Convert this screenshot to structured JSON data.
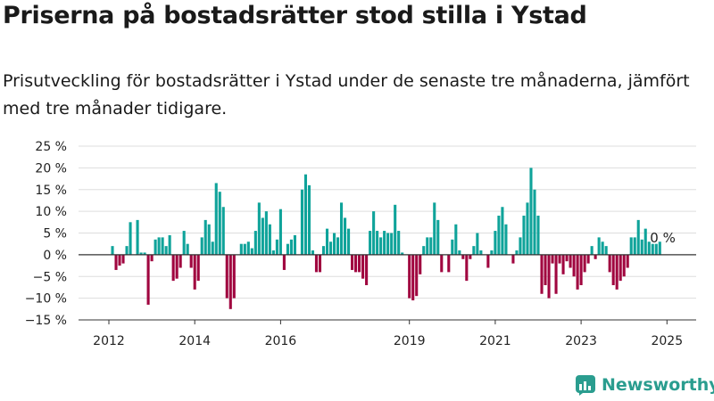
{
  "title": "Priserna på bostadsrätter stod stilla i Ystad",
  "subtitle": "Prisutveckling för bostadsrätter i Ystad under de senaste tre månaderna, jämfört med tre månader tidigare.",
  "brand": "Newsworthy",
  "end_label": "0 %",
  "colors": {
    "positive": "#0fa39a",
    "negative": "#a0053f",
    "grid": "#dddddd",
    "axis": "#333333",
    "brand": "#2a9d8f"
  },
  "chart_data": {
    "type": "bar",
    "title": "",
    "xlabel": "",
    "ylabel": "",
    "ylim": [
      -15,
      25
    ],
    "y_ticks": [
      25,
      20,
      15,
      10,
      5,
      0,
      -5,
      -10,
      -15
    ],
    "y_tick_labels": [
      "25 %",
      "20 %",
      "15 %",
      "10 %",
      "5 %",
      "0 %",
      "−5 %",
      "−10 %",
      "−15 %"
    ],
    "x_ticks": [
      2012,
      2014,
      2016,
      2019,
      2021,
      2023,
      2025
    ],
    "x_tick_labels": [
      "2012",
      "2014",
      "2016",
      "2019",
      "2021",
      "2023",
      "2025"
    ],
    "grid": true,
    "series": [
      {
        "values": [
          2,
          -3.5,
          -2.5,
          -2,
          2,
          7.5,
          0,
          8,
          0.5,
          0.5,
          -11.5,
          -1.5,
          3.5,
          4,
          4,
          2,
          4.5,
          -6,
          -5.5,
          -3,
          5.5,
          2.5,
          -3,
          -8,
          -6,
          4,
          8,
          7,
          3,
          16.5,
          14.5,
          11,
          -10,
          -12.5,
          -10,
          0,
          2.5,
          2.5,
          3,
          1.5,
          5.5,
          12,
          8.5,
          10,
          7,
          1,
          3.5,
          10.5,
          -3.5,
          2.5,
          3.5,
          4.5,
          0,
          15,
          18.5,
          16,
          1,
          -4,
          -4,
          2,
          6,
          3,
          5,
          4,
          12,
          8.5,
          6,
          -3.5,
          -4,
          -4,
          -5.5,
          -7,
          5.5,
          10,
          5.5,
          4,
          5.5,
          5,
          5,
          11.5,
          5.5,
          0.5,
          0,
          -10,
          -10.5,
          -9.5,
          -4.5,
          2,
          4,
          4,
          12,
          8,
          -4,
          0,
          -4,
          3.5,
          7,
          1,
          -1,
          -6,
          -1,
          2,
          5,
          1,
          0,
          -3,
          1,
          5.5,
          9,
          11,
          7,
          0,
          -2,
          1,
          4,
          9,
          12,
          20,
          15,
          9,
          -9,
          -7,
          -10,
          -2,
          -9,
          -2,
          -4.5,
          -1.5,
          -3,
          -5,
          -8,
          -7,
          -4,
          -2,
          2,
          -1,
          4,
          3,
          2,
          -4,
          -7,
          -8,
          -6,
          -5,
          -3,
          4,
          4,
          8,
          3.5,
          6,
          3,
          2.5,
          2.5,
          3,
          0
        ]
      }
    ]
  }
}
